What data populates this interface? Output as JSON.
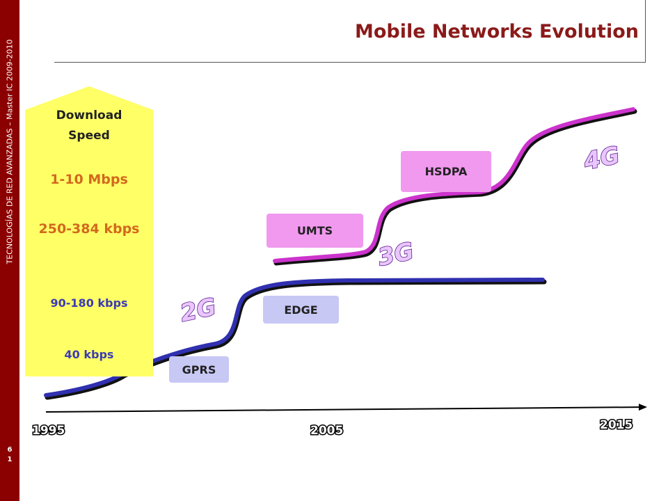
{
  "sidebar": {
    "text": "TECNOLOGÍAS DE RED AVANZADAS – Master  IC 2009-2010",
    "page_num_1": "6",
    "page_num_2": "1"
  },
  "title": "Mobile Networks Evolution",
  "speed_arrow": {
    "label_line1": "Download",
    "label_line2": "Speed",
    "speeds": [
      {
        "text": "1-10 Mbps",
        "color": "#d2691e"
      },
      {
        "text": "250-384 kbps",
        "color": "#d2691e"
      },
      {
        "text": "90-180 kbps",
        "color": "#3b3bb5"
      },
      {
        "text": "40 kbps",
        "color": "#3b3bb5"
      }
    ],
    "fill": "#ffff66"
  },
  "generations": {
    "g2": "2G",
    "g3": "3G",
    "g4": "4G"
  },
  "technologies": {
    "gprs": "GPRS",
    "edge": "EDGE",
    "umts": "UMTS",
    "hsdpa": "HSDPA"
  },
  "timeline": {
    "years": [
      "1995",
      "2005",
      "2015"
    ]
  },
  "colors": {
    "blue_curve": "#3030b0",
    "magenta_curve": "#cc33cc",
    "blue_box": "#c8c8f5",
    "pink_box": "#f099ef"
  }
}
